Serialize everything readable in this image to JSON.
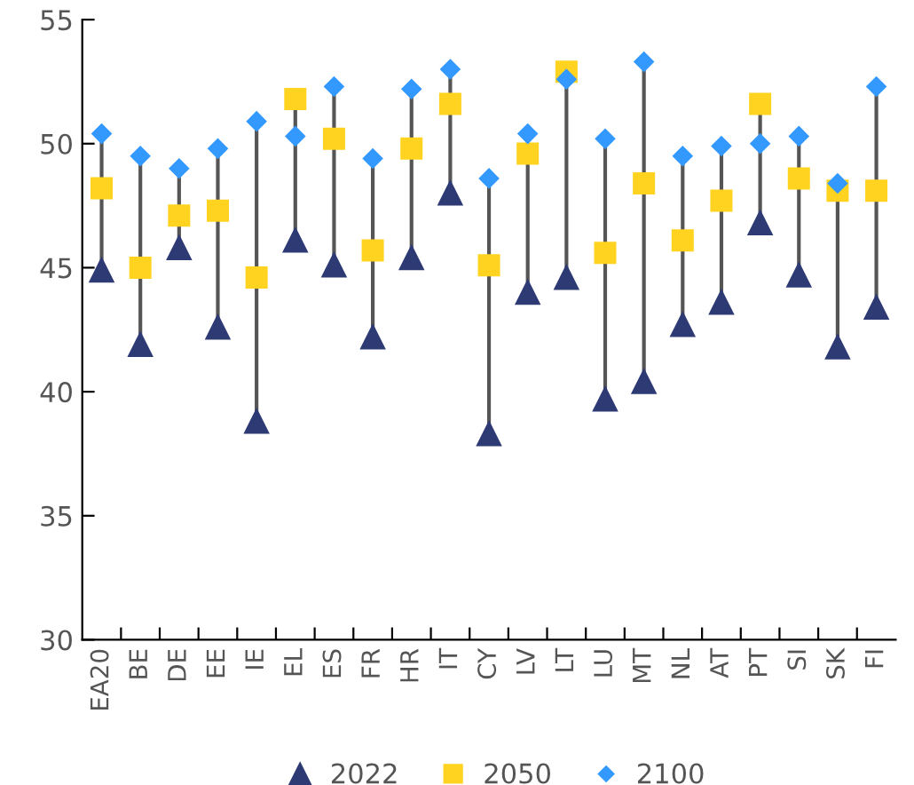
{
  "chart_data": {
    "type": "scatter",
    "categories": [
      "EA20",
      "BE",
      "DE",
      "EE",
      "IE",
      "EL",
      "ES",
      "FR",
      "HR",
      "IT",
      "CY",
      "LV",
      "LT",
      "LU",
      "MT",
      "NL",
      "AT",
      "PT",
      "SI",
      "SK",
      "FI"
    ],
    "series": [
      {
        "name": "2022",
        "color": "#2e3a74",
        "marker": "triangle",
        "values": [
          44.9,
          41.9,
          45.8,
          42.6,
          38.8,
          46.1,
          45.1,
          42.2,
          45.4,
          48.0,
          38.3,
          44.0,
          44.6,
          39.7,
          40.4,
          42.7,
          43.6,
          46.8,
          44.7,
          41.8,
          43.4
        ]
      },
      {
        "name": "2050",
        "color": "#ffd320",
        "marker": "square",
        "values": [
          48.2,
          45.0,
          47.1,
          47.3,
          44.6,
          51.8,
          50.2,
          45.7,
          49.8,
          51.6,
          45.1,
          49.6,
          52.9,
          45.6,
          48.4,
          46.1,
          47.7,
          51.6,
          48.6,
          48.1,
          48.1
        ]
      },
      {
        "name": "2100",
        "color": "#3399ff",
        "marker": "diamond",
        "values": [
          50.4,
          49.5,
          49.0,
          49.8,
          50.9,
          50.3,
          52.3,
          49.4,
          52.2,
          53.0,
          48.6,
          50.4,
          52.6,
          50.2,
          53.3,
          49.5,
          49.9,
          50.0,
          50.3,
          48.4,
          52.3
        ]
      }
    ],
    "ylim": [
      30,
      55
    ],
    "yticks": [
      30,
      35,
      40,
      45,
      50,
      55
    ],
    "grid": false,
    "legend": "bottom"
  }
}
